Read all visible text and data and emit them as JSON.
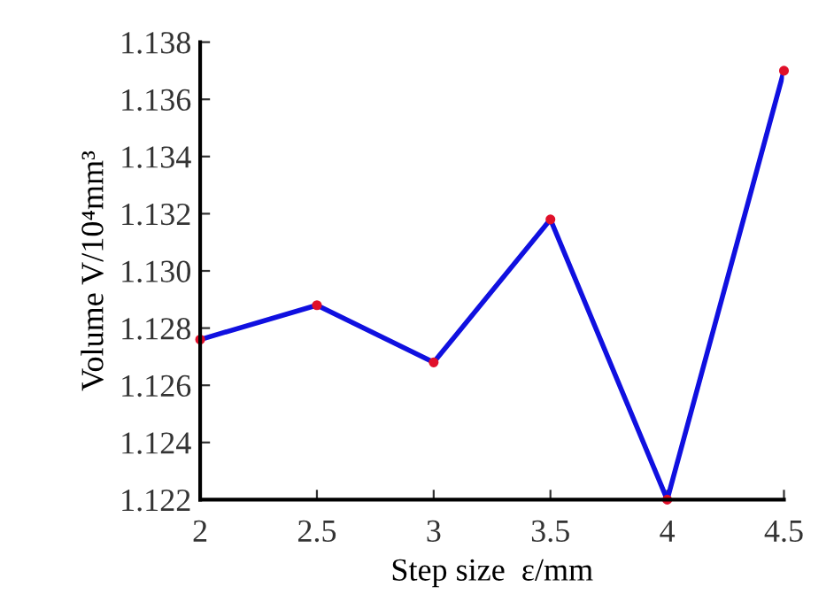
{
  "chart_data": {
    "type": "line",
    "xlabel": "Step size  ε/mm",
    "ylabel": "Volume V/10⁴mm³",
    "x": [
      2,
      2.5,
      3,
      3.5,
      4,
      4.5
    ],
    "series": [
      {
        "color": "#1010e0",
        "values": [
          1.1276,
          1.1288,
          1.1268,
          1.1318,
          1.122,
          1.137
        ]
      }
    ],
    "xlim": [
      2,
      4.5
    ],
    "xticks": [
      2,
      2.5,
      3,
      3.5,
      4,
      4.5
    ],
    "ylim": [
      1.122,
      1.138
    ],
    "yticks": [
      1.122,
      1.124,
      1.126,
      1.128,
      {
        "value": 1.13,
        "label": "1.130"
      },
      1.132,
      1.134,
      1.136,
      1.138
    ],
    "grid": false,
    "legend": false,
    "marker": "circle",
    "line_style": "solid"
  }
}
